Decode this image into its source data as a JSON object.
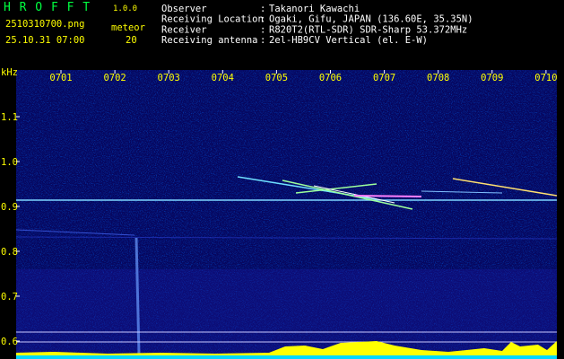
{
  "header": {
    "app_name": "H R O F F T",
    "version": "1.0.0",
    "file": "2510310700.png",
    "mode": "meteor",
    "datetime": "25.10.31 07:00",
    "count": "20"
  },
  "info_separator": ":",
  "info": [
    {
      "label": "Observer",
      "value": "Takanori Kawachi"
    },
    {
      "label": "Receiving Location",
      "value": "Ogaki, Gifu, JAPAN (136.60E, 35.35N)"
    },
    {
      "label": "Receiver",
      "value": "R820T2(RTL-SDR) SDR-Sharp 53.372MHz"
    },
    {
      "label": "Receiving antenna",
      "value": "2el-HB9CV Vertical (el. E-W)"
    }
  ],
  "axis": {
    "y_unit": "kHz",
    "y_labels": [
      "1.1",
      "1.0",
      "0.9",
      "0.8",
      "0.7",
      "0.6"
    ],
    "x_labels": [
      "0701",
      "0702",
      "0703",
      "0704",
      "0705",
      "0706",
      "0707",
      "0708",
      "0709",
      "0710"
    ]
  }
}
